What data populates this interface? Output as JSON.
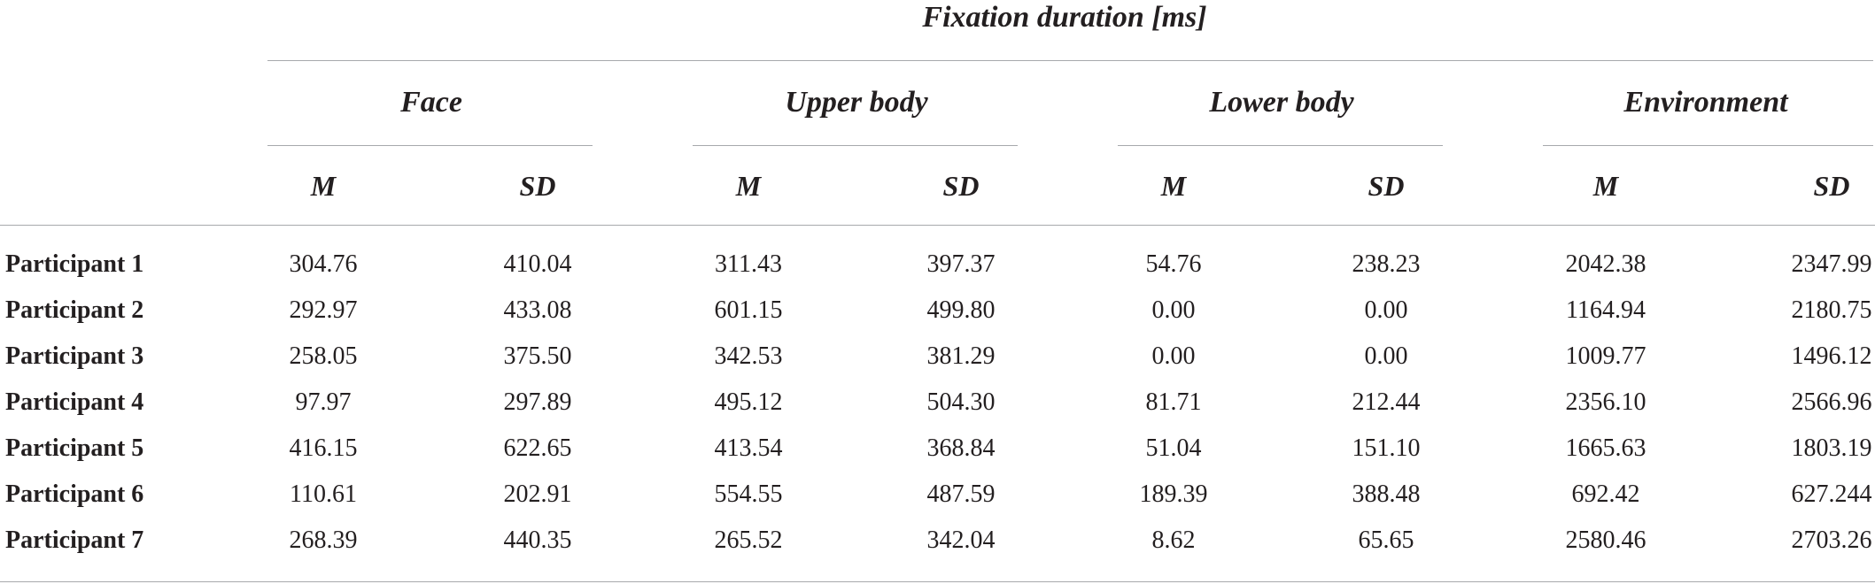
{
  "table": {
    "title": "Fixation duration [ms]",
    "groups": [
      "Face",
      "Upper body",
      "Lower body",
      "Environment"
    ],
    "stats": [
      "M",
      "SD"
    ],
    "rows": [
      {
        "label": "Participant 1",
        "values": [
          "304.76",
          "410.04",
          "311.43",
          "397.37",
          "54.76",
          "238.23",
          "2042.38",
          "2347.99"
        ]
      },
      {
        "label": "Participant 2",
        "values": [
          "292.97",
          "433.08",
          "601.15",
          "499.80",
          "0.00",
          "0.00",
          "1164.94",
          "2180.75"
        ]
      },
      {
        "label": "Participant 3",
        "values": [
          "258.05",
          "375.50",
          "342.53",
          "381.29",
          "0.00",
          "0.00",
          "1009.77",
          "1496.12"
        ]
      },
      {
        "label": "Participant 4",
        "values": [
          "97.97",
          "297.89",
          "495.12",
          "504.30",
          "81.71",
          "212.44",
          "2356.10",
          "2566.96"
        ]
      },
      {
        "label": "Participant 5",
        "values": [
          "416.15",
          "622.65",
          "413.54",
          "368.84",
          "51.04",
          "151.10",
          "1665.63",
          "1803.19"
        ]
      },
      {
        "label": "Participant 6",
        "values": [
          "110.61",
          "202.91",
          "554.55",
          "487.59",
          "189.39",
          "388.48",
          "692.42",
          "627.244"
        ]
      },
      {
        "label": "Participant 7",
        "values": [
          "268.39",
          "440.35",
          "265.52",
          "342.04",
          "8.62",
          "65.65",
          "2580.46",
          "2703.26"
        ]
      }
    ]
  }
}
